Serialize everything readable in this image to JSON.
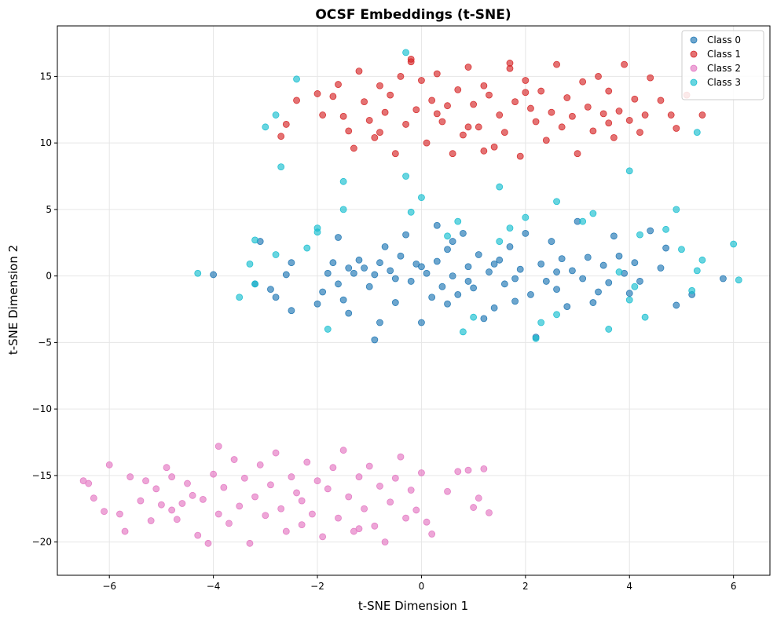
{
  "chart_data": {
    "type": "scatter",
    "title": "OCSF Embeddings (t-SNE)",
    "xlabel": "t-SNE Dimension 1",
    "ylabel": "t-SNE Dimension 2",
    "xlim": [
      -7,
      6.7
    ],
    "ylim": [
      -22.5,
      18.8
    ],
    "xticks": [
      -6,
      -4,
      -2,
      0,
      2,
      4,
      6
    ],
    "xtick_labels": [
      "−6",
      "−4",
      "−2",
      "0",
      "2",
      "4",
      "6"
    ],
    "yticks": [
      -20,
      -15,
      -10,
      -5,
      0,
      5,
      10,
      15
    ],
    "ytick_labels": [
      "−20",
      "−15",
      "−10",
      "−5",
      "0",
      "5",
      "10",
      "15"
    ],
    "grid": true,
    "legend_position": "top-right",
    "series": [
      {
        "name": "Class 0",
        "color": "#1f77b4",
        "points": [
          [
            -4.0,
            0.1
          ],
          [
            -3.1,
            2.6
          ],
          [
            -3.2,
            -0.6
          ],
          [
            -2.9,
            -1.0
          ],
          [
            -2.8,
            -1.6
          ],
          [
            -2.6,
            0.1
          ],
          [
            -2.5,
            -2.6
          ],
          [
            -2.5,
            1.0
          ],
          [
            -2.0,
            -2.1
          ],
          [
            -1.9,
            -1.2
          ],
          [
            -1.8,
            0.2
          ],
          [
            -1.7,
            1.0
          ],
          [
            -1.6,
            2.9
          ],
          [
            -1.6,
            -0.6
          ],
          [
            -1.5,
            -1.8
          ],
          [
            -1.4,
            -2.8
          ],
          [
            -1.3,
            0.2
          ],
          [
            -1.2,
            1.2
          ],
          [
            -1.1,
            0.6
          ],
          [
            -1.0,
            -0.8
          ],
          [
            -0.9,
            -4.8
          ],
          [
            -0.9,
            0.1
          ],
          [
            -0.8,
            1.0
          ],
          [
            -0.8,
            -3.5
          ],
          [
            -0.7,
            2.2
          ],
          [
            -0.6,
            0.4
          ],
          [
            -0.5,
            -2.0
          ],
          [
            -0.4,
            1.5
          ],
          [
            -0.3,
            3.1
          ],
          [
            -0.2,
            -0.4
          ],
          [
            -0.1,
            0.9
          ],
          [
            0.0,
            -3.5
          ],
          [
            0.1,
            0.2
          ],
          [
            0.2,
            -1.6
          ],
          [
            0.3,
            3.8
          ],
          [
            0.3,
            1.1
          ],
          [
            0.4,
            -0.8
          ],
          [
            0.5,
            2.0
          ],
          [
            0.5,
            -2.1
          ],
          [
            0.6,
            0.0
          ],
          [
            0.7,
            -1.4
          ],
          [
            0.8,
            3.2
          ],
          [
            0.9,
            0.7
          ],
          [
            1.0,
            -0.9
          ],
          [
            1.1,
            1.6
          ],
          [
            1.2,
            -3.2
          ],
          [
            1.3,
            0.3
          ],
          [
            1.4,
            -2.4
          ],
          [
            1.5,
            1.2
          ],
          [
            1.6,
            -0.6
          ],
          [
            1.7,
            2.2
          ],
          [
            1.8,
            -1.9
          ],
          [
            1.9,
            0.5
          ],
          [
            2.0,
            3.2
          ],
          [
            2.1,
            -1.4
          ],
          [
            2.2,
            -4.6
          ],
          [
            2.3,
            0.9
          ],
          [
            2.4,
            -0.4
          ],
          [
            2.5,
            2.6
          ],
          [
            2.6,
            -1.0
          ],
          [
            2.7,
            1.3
          ],
          [
            2.8,
            -2.3
          ],
          [
            2.9,
            0.4
          ],
          [
            3.0,
            4.1
          ],
          [
            3.1,
            -0.2
          ],
          [
            3.2,
            1.4
          ],
          [
            3.3,
            -2.0
          ],
          [
            3.4,
            -1.2
          ],
          [
            3.5,
            0.8
          ],
          [
            3.6,
            -0.5
          ],
          [
            3.7,
            3.0
          ],
          [
            3.8,
            1.5
          ],
          [
            3.9,
            0.2
          ],
          [
            4.0,
            -1.3
          ],
          [
            4.1,
            1.0
          ],
          [
            4.2,
            -0.4
          ],
          [
            4.4,
            3.4
          ],
          [
            4.6,
            0.6
          ],
          [
            4.7,
            2.1
          ],
          [
            4.9,
            -2.2
          ],
          [
            5.2,
            -1.4
          ],
          [
            5.8,
            -0.2
          ],
          [
            -0.5,
            -0.2
          ],
          [
            0.0,
            0.7
          ],
          [
            0.9,
            -0.4
          ],
          [
            1.8,
            -0.2
          ],
          [
            2.6,
            0.3
          ],
          [
            -1.4,
            0.6
          ],
          [
            0.6,
            2.6
          ],
          [
            1.4,
            0.9
          ]
        ]
      },
      {
        "name": "Class 1",
        "color": "#d62728",
        "points": [
          [
            -2.7,
            10.5
          ],
          [
            -2.6,
            11.4
          ],
          [
            -2.4,
            13.2
          ],
          [
            -2.0,
            13.7
          ],
          [
            -1.9,
            12.1
          ],
          [
            -1.7,
            13.5
          ],
          [
            -1.6,
            14.4
          ],
          [
            -1.5,
            12.0
          ],
          [
            -1.4,
            10.9
          ],
          [
            -1.3,
            9.6
          ],
          [
            -1.2,
            15.4
          ],
          [
            -1.1,
            13.1
          ],
          [
            -1.0,
            11.7
          ],
          [
            -0.9,
            10.4
          ],
          [
            -0.8,
            14.3
          ],
          [
            -0.7,
            12.3
          ],
          [
            -0.6,
            13.6
          ],
          [
            -0.5,
            9.2
          ],
          [
            -0.4,
            15.0
          ],
          [
            -0.3,
            11.4
          ],
          [
            -0.2,
            16.3
          ],
          [
            -0.1,
            12.5
          ],
          [
            0.0,
            14.7
          ],
          [
            0.1,
            10.0
          ],
          [
            0.2,
            13.2
          ],
          [
            0.3,
            15.2
          ],
          [
            0.4,
            11.6
          ],
          [
            0.5,
            12.8
          ],
          [
            0.6,
            9.2
          ],
          [
            0.7,
            14.0
          ],
          [
            0.8,
            10.6
          ],
          [
            0.9,
            15.7
          ],
          [
            1.0,
            12.9
          ],
          [
            1.1,
            11.2
          ],
          [
            1.2,
            14.3
          ],
          [
            1.3,
            13.6
          ],
          [
            1.4,
            9.7
          ],
          [
            1.5,
            12.1
          ],
          [
            1.6,
            10.8
          ],
          [
            1.7,
            15.6
          ],
          [
            1.8,
            13.1
          ],
          [
            1.9,
            9.0
          ],
          [
            2.0,
            14.7
          ],
          [
            2.1,
            12.6
          ],
          [
            2.2,
            11.6
          ],
          [
            2.3,
            13.9
          ],
          [
            2.4,
            10.2
          ],
          [
            2.5,
            12.3
          ],
          [
            2.6,
            15.9
          ],
          [
            2.7,
            11.2
          ],
          [
            2.8,
            13.4
          ],
          [
            2.9,
            12.0
          ],
          [
            3.0,
            9.2
          ],
          [
            3.1,
            14.6
          ],
          [
            3.2,
            12.7
          ],
          [
            3.3,
            10.9
          ],
          [
            3.4,
            15.0
          ],
          [
            3.5,
            12.2
          ],
          [
            3.6,
            13.9
          ],
          [
            3.7,
            10.4
          ],
          [
            3.8,
            12.4
          ],
          [
            3.9,
            15.9
          ],
          [
            4.0,
            11.7
          ],
          [
            4.1,
            13.3
          ],
          [
            4.2,
            10.8
          ],
          [
            4.3,
            12.1
          ],
          [
            4.4,
            14.9
          ],
          [
            4.6,
            13.2
          ],
          [
            4.8,
            12.1
          ],
          [
            4.9,
            11.1
          ],
          [
            5.1,
            13.6
          ],
          [
            5.4,
            12.1
          ],
          [
            -0.2,
            16.1
          ],
          [
            0.9,
            11.2
          ],
          [
            1.7,
            16.0
          ],
          [
            2.0,
            13.8
          ],
          [
            -0.8,
            10.8
          ],
          [
            3.6,
            11.5
          ],
          [
            0.3,
            12.2
          ],
          [
            1.2,
            9.4
          ]
        ]
      },
      {
        "name": "Class 2",
        "color": "#e377c2",
        "points": [
          [
            -6.5,
            -15.4
          ],
          [
            -6.3,
            -16.7
          ],
          [
            -6.1,
            -17.7
          ],
          [
            -6.0,
            -14.2
          ],
          [
            -5.8,
            -17.9
          ],
          [
            -5.7,
            -19.2
          ],
          [
            -5.6,
            -15.1
          ],
          [
            -5.4,
            -16.9
          ],
          [
            -5.3,
            -15.4
          ],
          [
            -5.2,
            -18.4
          ],
          [
            -5.1,
            -16.0
          ],
          [
            -5.0,
            -17.2
          ],
          [
            -4.9,
            -14.4
          ],
          [
            -4.8,
            -15.1
          ],
          [
            -4.7,
            -18.3
          ],
          [
            -4.6,
            -17.1
          ],
          [
            -4.5,
            -15.6
          ],
          [
            -4.4,
            -16.5
          ],
          [
            -4.3,
            -19.5
          ],
          [
            -4.2,
            -16.8
          ],
          [
            -4.1,
            -20.1
          ],
          [
            -4.0,
            -14.9
          ],
          [
            -3.9,
            -17.9
          ],
          [
            -3.8,
            -15.9
          ],
          [
            -3.7,
            -18.6
          ],
          [
            -3.6,
            -13.8
          ],
          [
            -3.5,
            -17.3
          ],
          [
            -3.4,
            -15.2
          ],
          [
            -3.3,
            -20.1
          ],
          [
            -3.2,
            -16.6
          ],
          [
            -3.1,
            -14.2
          ],
          [
            -3.0,
            -18.0
          ],
          [
            -2.9,
            -15.7
          ],
          [
            -2.8,
            -13.3
          ],
          [
            -2.7,
            -17.5
          ],
          [
            -2.6,
            -19.2
          ],
          [
            -2.5,
            -15.1
          ],
          [
            -2.4,
            -16.3
          ],
          [
            -2.3,
            -18.7
          ],
          [
            -2.2,
            -14.0
          ],
          [
            -2.1,
            -17.9
          ],
          [
            -2.0,
            -15.4
          ],
          [
            -1.9,
            -19.6
          ],
          [
            -1.8,
            -16.0
          ],
          [
            -1.7,
            -14.4
          ],
          [
            -1.6,
            -18.2
          ],
          [
            -1.5,
            -13.1
          ],
          [
            -1.4,
            -16.6
          ],
          [
            -1.3,
            -19.2
          ],
          [
            -1.2,
            -15.1
          ],
          [
            -1.1,
            -17.5
          ],
          [
            -1.0,
            -14.3
          ],
          [
            -0.9,
            -18.8
          ],
          [
            -0.8,
            -15.8
          ],
          [
            -0.7,
            -20.0
          ],
          [
            -0.6,
            -17.0
          ],
          [
            -0.5,
            -15.2
          ],
          [
            -0.4,
            -13.6
          ],
          [
            -0.3,
            -18.2
          ],
          [
            -0.2,
            -16.1
          ],
          [
            -0.1,
            -17.6
          ],
          [
            0.0,
            -14.8
          ],
          [
            0.1,
            -18.5
          ],
          [
            0.2,
            -19.4
          ],
          [
            0.5,
            -16.2
          ],
          [
            0.7,
            -14.7
          ],
          [
            0.9,
            -14.6
          ],
          [
            1.0,
            -17.4
          ],
          [
            1.1,
            -16.7
          ],
          [
            1.2,
            -14.5
          ],
          [
            1.3,
            -17.8
          ],
          [
            -3.9,
            -12.8
          ],
          [
            -2.3,
            -16.9
          ],
          [
            -1.2,
            -19.0
          ],
          [
            -4.8,
            -17.6
          ],
          [
            -6.4,
            -15.6
          ]
        ]
      },
      {
        "name": "Class 3",
        "color": "#17becf",
        "points": [
          [
            -0.3,
            16.8
          ],
          [
            -2.8,
            12.1
          ],
          [
            -3.0,
            11.2
          ],
          [
            -2.4,
            14.8
          ],
          [
            -2.7,
            8.2
          ],
          [
            -1.5,
            7.1
          ],
          [
            -0.3,
            7.5
          ],
          [
            1.5,
            6.7
          ],
          [
            4.0,
            7.9
          ],
          [
            5.3,
            10.8
          ],
          [
            -1.5,
            5.0
          ],
          [
            -0.2,
            4.8
          ],
          [
            0.0,
            5.9
          ],
          [
            2.6,
            5.6
          ],
          [
            4.9,
            5.0
          ],
          [
            -3.2,
            2.7
          ],
          [
            -2.0,
            3.6
          ],
          [
            -2.2,
            2.1
          ],
          [
            -3.3,
            0.9
          ],
          [
            -4.3,
            0.2
          ],
          [
            -3.5,
            -1.6
          ],
          [
            -3.2,
            -0.6
          ],
          [
            -2.8,
            1.6
          ],
          [
            -1.8,
            -4.0
          ],
          [
            1.0,
            -3.1
          ],
          [
            0.8,
            -4.2
          ],
          [
            2.2,
            -4.7
          ],
          [
            2.6,
            -2.9
          ],
          [
            3.6,
            -4.0
          ],
          [
            4.0,
            -1.8
          ],
          [
            4.3,
            -3.1
          ],
          [
            4.1,
            -0.8
          ],
          [
            3.1,
            4.1
          ],
          [
            3.3,
            4.7
          ],
          [
            3.8,
            0.3
          ],
          [
            4.7,
            3.5
          ],
          [
            5.0,
            2.0
          ],
          [
            5.4,
            1.2
          ],
          [
            5.3,
            0.4
          ],
          [
            6.0,
            2.4
          ],
          [
            6.1,
            -0.3
          ],
          [
            1.7,
            3.6
          ],
          [
            0.5,
            3.0
          ],
          [
            0.7,
            4.1
          ],
          [
            2.0,
            4.4
          ],
          [
            2.3,
            -3.5
          ],
          [
            4.2,
            3.1
          ],
          [
            5.2,
            -1.1
          ],
          [
            -2.0,
            3.3
          ],
          [
            1.5,
            2.6
          ]
        ]
      }
    ]
  }
}
